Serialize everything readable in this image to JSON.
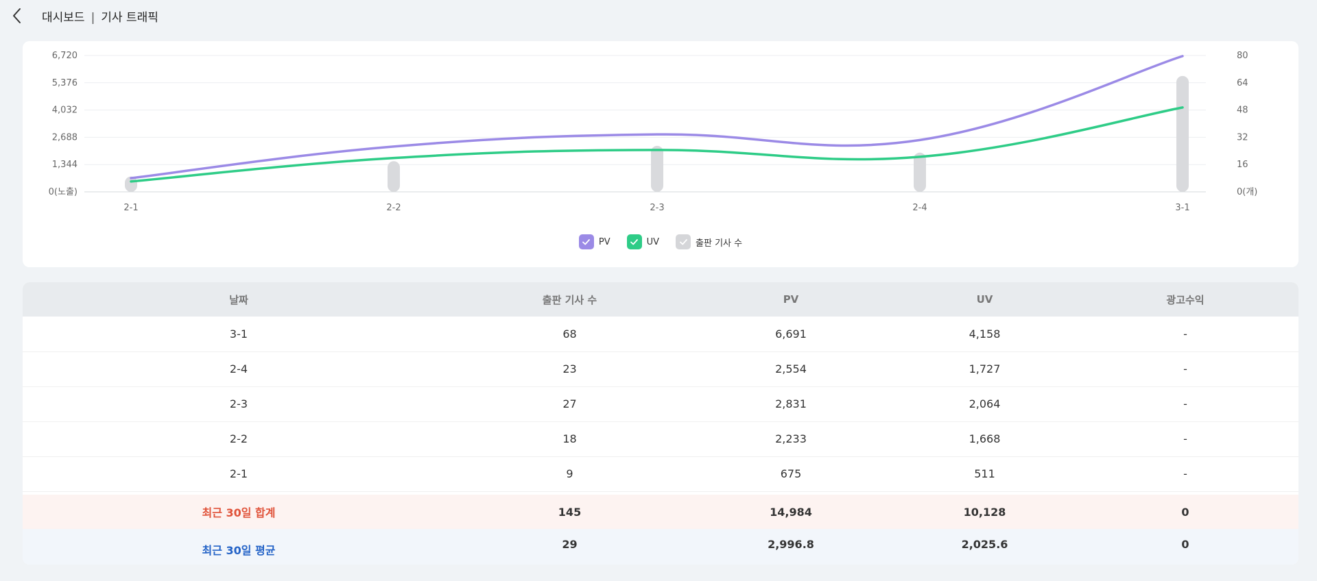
{
  "header": {
    "breadcrumb_root": "대시보드",
    "separator": "|",
    "breadcrumb_current": "기사 트래픽"
  },
  "chart_data": {
    "type": "line",
    "categories": [
      "2-1",
      "2-2",
      "2-3",
      "2-4",
      "3-1"
    ],
    "series": [
      {
        "name": "PV",
        "type": "line",
        "axis": "left",
        "color": "#9b8ae6",
        "values": [
          675,
          2233,
          2831,
          2554,
          6691
        ]
      },
      {
        "name": "UV",
        "type": "line",
        "axis": "left",
        "color": "#2ecc87",
        "values": [
          511,
          1668,
          2064,
          1727,
          4158
        ]
      },
      {
        "name": "출판 기사 수",
        "type": "bar",
        "axis": "right",
        "color": "#d9dadd",
        "values": [
          9,
          18,
          27,
          23,
          68
        ]
      }
    ],
    "left_axis": {
      "ticks": [
        "6,720",
        "5,376",
        "4,032",
        "2,688",
        "1,344",
        "0(노출)"
      ],
      "min": 0,
      "max": 6720
    },
    "right_axis": {
      "ticks": [
        "80",
        "64",
        "48",
        "32",
        "16",
        "0(개)"
      ],
      "min": 0,
      "max": 80
    },
    "grid": true,
    "legend_position": "bottom-center"
  },
  "legend": {
    "pv": {
      "label": "PV",
      "color": "#9b8ae6"
    },
    "uv": {
      "label": "UV",
      "color": "#2ecc87"
    },
    "articles": {
      "label": "출판 기사 수",
      "color": "#d5d6d9"
    }
  },
  "table": {
    "headers": [
      "날짜",
      "출판 기사 수",
      "PV",
      "UV",
      "광고수익"
    ],
    "rows": [
      [
        "3-1",
        "68",
        "6,691",
        "4,158",
        "-"
      ],
      [
        "2-4",
        "23",
        "2,554",
        "1,727",
        "-"
      ],
      [
        "2-3",
        "27",
        "2,831",
        "2,064",
        "-"
      ],
      [
        "2-2",
        "18",
        "2,233",
        "1,668",
        "-"
      ],
      [
        "2-1",
        "9",
        "675",
        "511",
        "-"
      ]
    ],
    "summary_sum": [
      "최근 30일 합계",
      "145",
      "14,984",
      "10,128",
      "0"
    ],
    "summary_avg": [
      "최근 30일 평균",
      "29",
      "2,996.8",
      "2,025.6",
      "0"
    ],
    "sum_color": "#e0533a",
    "avg_color": "#2463c7"
  }
}
